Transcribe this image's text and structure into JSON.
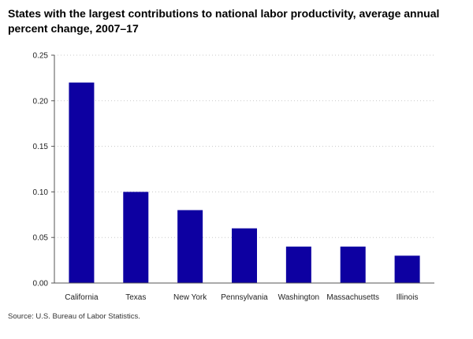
{
  "chart_data": {
    "type": "bar",
    "title": "States with the largest contributions to national labor productivity, average annual percent change, 2007–17",
    "xlabel": "",
    "ylabel": "",
    "categories": [
      "California",
      "Texas",
      "New York",
      "Pennsylvania",
      "Washington",
      "Massachusetts",
      "Illinois"
    ],
    "values": [
      0.22,
      0.1,
      0.08,
      0.06,
      0.04,
      0.04,
      0.03
    ],
    "ylim": [
      0,
      0.25
    ],
    "yticks": [
      "0.00",
      "0.05",
      "0.10",
      "0.15",
      "0.20",
      "0.25"
    ],
    "bar_color": "#0d00a1",
    "grid": true,
    "legend": "none",
    "source": "Source: U.S. Bureau of Labor Statistics."
  }
}
